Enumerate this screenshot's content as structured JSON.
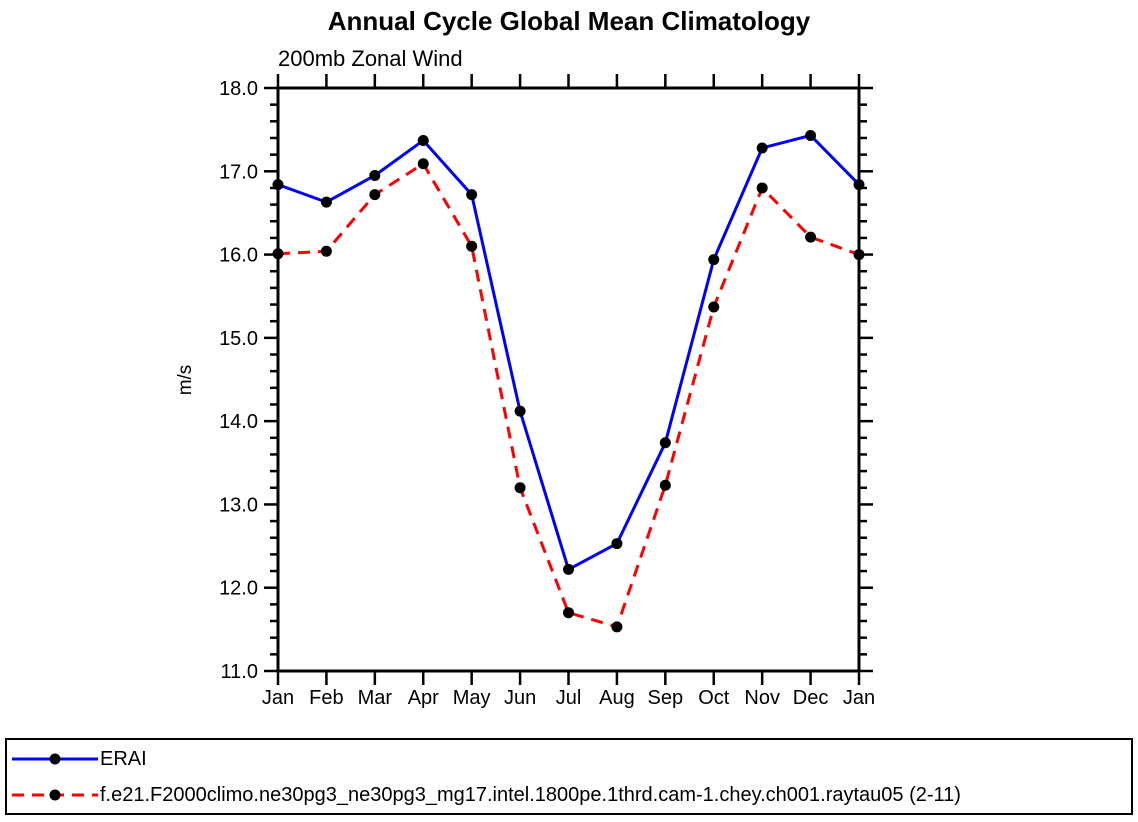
{
  "chart_data": {
    "type": "line",
    "title": "Annual Cycle Global Mean Climatology",
    "subtitle": "200mb Zonal Wind",
    "ylabel": "m/s",
    "xlabel": "",
    "ylim": [
      11.0,
      18.0
    ],
    "ytick_step": 1.0,
    "ytick_minor_step": 0.2,
    "ytick_labels": [
      "11.0",
      "12.0",
      "13.0",
      "14.0",
      "15.0",
      "16.0",
      "17.0",
      "18.0"
    ],
    "categories": [
      "Jan",
      "Feb",
      "Mar",
      "Apr",
      "May",
      "Jun",
      "Jul",
      "Aug",
      "Sep",
      "Oct",
      "Nov",
      "Dec",
      "Jan"
    ],
    "grid": false,
    "legend_position": "bottom",
    "frame_color": "#000000",
    "marker": "filled-circle",
    "marker_color": "#000000",
    "series": [
      {
        "name": "ERAI",
        "color": "#0000ff",
        "style": "solid",
        "values": [
          16.84,
          16.63,
          16.95,
          17.37,
          16.72,
          14.12,
          12.22,
          12.53,
          13.74,
          15.94,
          17.28,
          17.43,
          16.84
        ]
      },
      {
        "name": "f.e21.F2000climo.ne30pg3_ne30pg3_mg17.intel.1800pe.1thrd.cam-1.chey.ch001.raytau05 (2-11)",
        "color": "#ff0000",
        "style": "dashed",
        "values": [
          16.01,
          16.04,
          16.72,
          17.09,
          16.1,
          13.2,
          11.7,
          11.53,
          13.23,
          15.37,
          16.8,
          16.21,
          16.0
        ]
      }
    ]
  }
}
